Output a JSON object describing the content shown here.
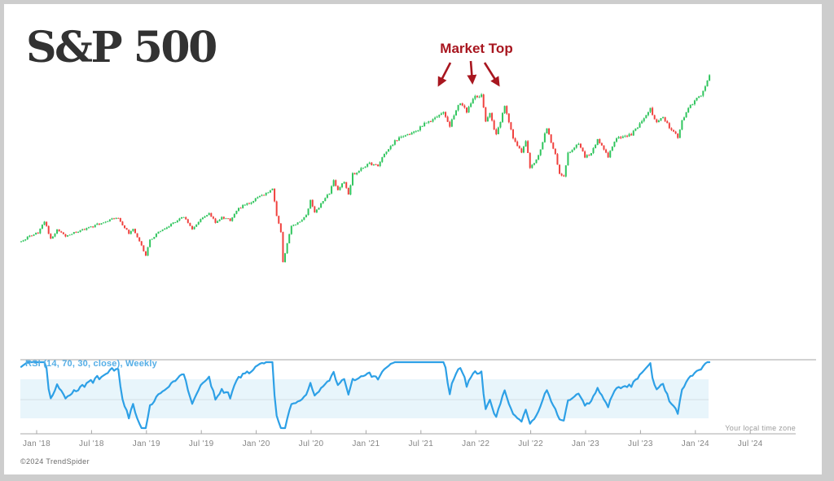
{
  "ui": {
    "title": "S&P 500",
    "annotation": {
      "text": "Market Top",
      "color": "#a8161f"
    },
    "timezone_note": "Your local time zone",
    "copyright": "©2024 TrendSpider"
  },
  "chart_data": {
    "type": "candlestick",
    "title": "S&P 500",
    "timeframe": "Weekly",
    "grid": "off",
    "y_axis_labels": "none",
    "x_tick_labels": [
      "Jan '18",
      "Jul '18",
      "Jan '19",
      "Jul '19",
      "Jan '20",
      "Jul '20",
      "Jan '21",
      "Jul '21",
      "Jan '22",
      "Jul '22",
      "Jan '23",
      "Jul '23",
      "Jan '24",
      "Jul '24"
    ],
    "x_range": [
      "Nov 2017",
      "Feb 2024"
    ],
    "visible_price_range_est": [
      2150,
      5250
    ],
    "weeks_total": 327,
    "up_color": "#30c55e",
    "down_color": "#f0413e",
    "annotation": {
      "text": "Market Top",
      "points_at": "Dec 2021 – Jan 2022 peak",
      "color": "#a8161f"
    },
    "close_anchors": [
      [
        0,
        2570
      ],
      [
        4,
        2645
      ],
      [
        8,
        2695
      ],
      [
        11,
        2872
      ],
      [
        14,
        2605
      ],
      [
        17,
        2740
      ],
      [
        21,
        2650
      ],
      [
        25,
        2700
      ],
      [
        30,
        2750
      ],
      [
        34,
        2790
      ],
      [
        38,
        2850
      ],
      [
        43,
        2905
      ],
      [
        46,
        2930
      ],
      [
        49,
        2770
      ],
      [
        51,
        2690
      ],
      [
        53,
        2765
      ],
      [
        55,
        2630
      ],
      [
        59,
        2355
      ],
      [
        61,
        2580
      ],
      [
        65,
        2710
      ],
      [
        69,
        2780
      ],
      [
        73,
        2860
      ],
      [
        77,
        2940
      ],
      [
        81,
        2760
      ],
      [
        85,
        2890
      ],
      [
        89,
        3000
      ],
      [
        92,
        2860
      ],
      [
        95,
        2925
      ],
      [
        99,
        2890
      ],
      [
        103,
        3070
      ],
      [
        108,
        3150
      ],
      [
        112,
        3235
      ],
      [
        116,
        3290
      ],
      [
        119,
        3380
      ],
      [
        121,
        2955
      ],
      [
        123,
        2710
      ],
      [
        124,
        2250
      ],
      [
        126,
        2540
      ],
      [
        128,
        2790
      ],
      [
        132,
        2865
      ],
      [
        135,
        2950
      ],
      [
        137,
        3190
      ],
      [
        139,
        3010
      ],
      [
        142,
        3130
      ],
      [
        146,
        3300
      ],
      [
        148,
        3500
      ],
      [
        150,
        3340
      ],
      [
        153,
        3480
      ],
      [
        155,
        3270
      ],
      [
        157,
        3585
      ],
      [
        160,
        3640
      ],
      [
        165,
        3750
      ],
      [
        169,
        3715
      ],
      [
        172,
        3900
      ],
      [
        178,
        4120
      ],
      [
        182,
        4180
      ],
      [
        187,
        4240
      ],
      [
        191,
        4350
      ],
      [
        195,
        4430
      ],
      [
        200,
        4530
      ],
      [
        203,
        4330
      ],
      [
        208,
        4690
      ],
      [
        211,
        4550
      ],
      [
        215,
        4770
      ],
      [
        218,
        4795
      ],
      [
        220,
        4400
      ],
      [
        222,
        4500
      ],
      [
        225,
        4180
      ],
      [
        229,
        4620
      ],
      [
        233,
        4130
      ],
      [
        237,
        3900
      ],
      [
        239,
        4110
      ],
      [
        241,
        3675
      ],
      [
        244,
        3820
      ],
      [
        246,
        3960
      ],
      [
        249,
        4305
      ],
      [
        253,
        3875
      ],
      [
        255,
        3585
      ],
      [
        257,
        3560
      ],
      [
        259,
        3900
      ],
      [
        261,
        3965
      ],
      [
        264,
        4070
      ],
      [
        267,
        3845
      ],
      [
        270,
        3895
      ],
      [
        273,
        4135
      ],
      [
        276,
        3970
      ],
      [
        278,
        3860
      ],
      [
        281,
        4105
      ],
      [
        285,
        4170
      ],
      [
        289,
        4200
      ],
      [
        293,
        4350
      ],
      [
        296,
        4505
      ],
      [
        298,
        4580
      ],
      [
        301,
        4370
      ],
      [
        304,
        4460
      ],
      [
        307,
        4290
      ],
      [
        310,
        4220
      ],
      [
        311,
        4120
      ],
      [
        313,
        4415
      ],
      [
        316,
        4595
      ],
      [
        321,
        4770
      ],
      [
        323,
        4840
      ],
      [
        326,
        5110
      ]
    ],
    "rsi": {
      "label": "RSI (14, 70, 30, close), Weekly",
      "length": 14,
      "overbought": 70,
      "oversold": 30,
      "source": "close",
      "line_color": "#2da0e6",
      "band_fill": "#e8f5fb",
      "midline_color": "#d3dfe6",
      "label_color": "#55aee6"
    }
  }
}
